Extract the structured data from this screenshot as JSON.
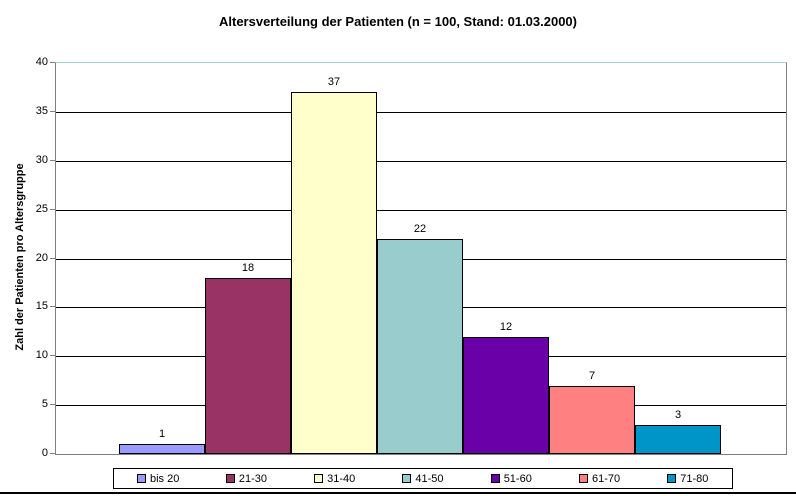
{
  "chart_data": {
    "type": "bar",
    "title": "Altersverteilung der Patienten (n = 100, Stand: 01.03.2000)",
    "ylabel": "Zahl der Patienten pro Altersgruppe",
    "xlabel": "",
    "ylim": [
      0,
      40
    ],
    "yticks": [
      0,
      5,
      10,
      15,
      20,
      25,
      30,
      35,
      40
    ],
    "grid": true,
    "legend_position": "bottom",
    "categories": [
      "bis 20",
      "21-30",
      "31-40",
      "41-50",
      "51-60",
      "61-70",
      "71-80"
    ],
    "values": [
      1,
      18,
      37,
      22,
      12,
      7,
      3
    ],
    "series": [
      {
        "name": "bis 20",
        "value": 1,
        "color": "#9999FF"
      },
      {
        "name": "21-30",
        "value": 18,
        "color": "#993366"
      },
      {
        "name": "31-40",
        "value": 37,
        "color": "#FFFFCC"
      },
      {
        "name": "41-50",
        "value": 22,
        "color": "#99CCCC"
      },
      {
        "name": "51-60",
        "value": 12,
        "color": "#6A00A8"
      },
      {
        "name": "61-70",
        "value": 7,
        "color": "#FF8080"
      },
      {
        "name": "71-80",
        "value": 3,
        "color": "#0095C8"
      }
    ]
  },
  "colors": {
    "background": "#FFFFFF",
    "axis": "#808080",
    "gridline": "#000000",
    "plot_top_border": "#A8D4D4",
    "bar_border": "#000000",
    "legend_border": "#000000",
    "text": "#000000"
  }
}
